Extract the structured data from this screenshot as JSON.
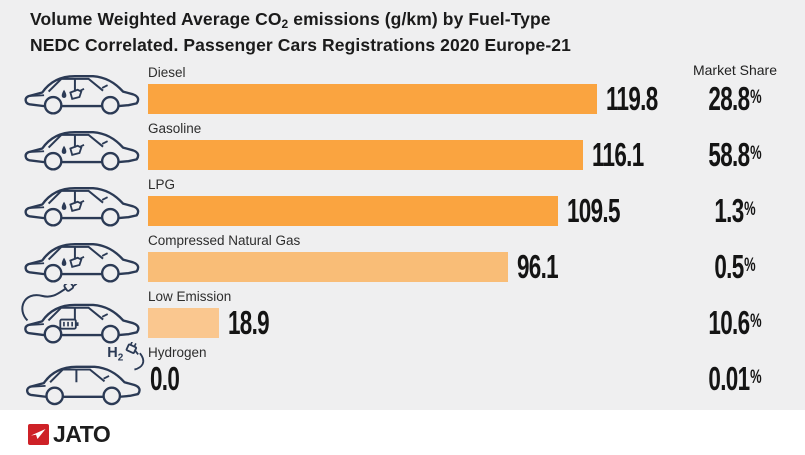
{
  "title": {
    "line1_pre": "Volume Weighted Average CO",
    "line1_sub": "2",
    "line1_post": " emissions (g/km) by Fuel-Type",
    "line2": "NEDC Correlated. Passenger Cars Registrations 2020 Europe-21"
  },
  "market_share_header": "Market Share",
  "logo": {
    "text": "JATO"
  },
  "colors": {
    "background": "#EFEFF0",
    "bar_strong": "#FAA440",
    "bar_medium": "#F9BD77",
    "bar_light": "#FAC78F",
    "car_outline": "#2B3A55",
    "logo_red": "#CE2127",
    "text_dark": "#141414"
  },
  "chart_data": {
    "type": "bar",
    "orientation": "horizontal",
    "title": "Volume Weighted Average CO2 emissions (g/km) by Fuel-Type NEDC Correlated. Passenger Cars Registrations 2020 Europe-21",
    "categories": [
      "Diesel",
      "Gasoline",
      "LPG",
      "Compressed Natural Gas",
      "Low Emission",
      "Hydrogen"
    ],
    "values": [
      119.8,
      116.1,
      109.5,
      96.1,
      18.9,
      0.0
    ],
    "value_labels": [
      "119.8",
      "116.1",
      "109.5",
      "96.1",
      "18.9",
      "0.0"
    ],
    "market_share": [
      "28.8%",
      "58.8%",
      "1.3%",
      "0.5%",
      "10.6%",
      "0.01%"
    ],
    "bar_colors": [
      "#FAA440",
      "#FAA440",
      "#FAA440",
      "#F9BD77",
      "#FAC78F",
      "#FAC78F"
    ],
    "icons": [
      "car-fuel-icon",
      "car-fuel-icon",
      "car-fuel-icon",
      "car-fuel-icon",
      "car-electric-icon",
      "car-hydrogen-icon"
    ],
    "xlim": [
      0,
      125
    ],
    "grid": false,
    "legend": false,
    "value_label_position": "right-of-bar",
    "share_column_header": "Market Share"
  }
}
